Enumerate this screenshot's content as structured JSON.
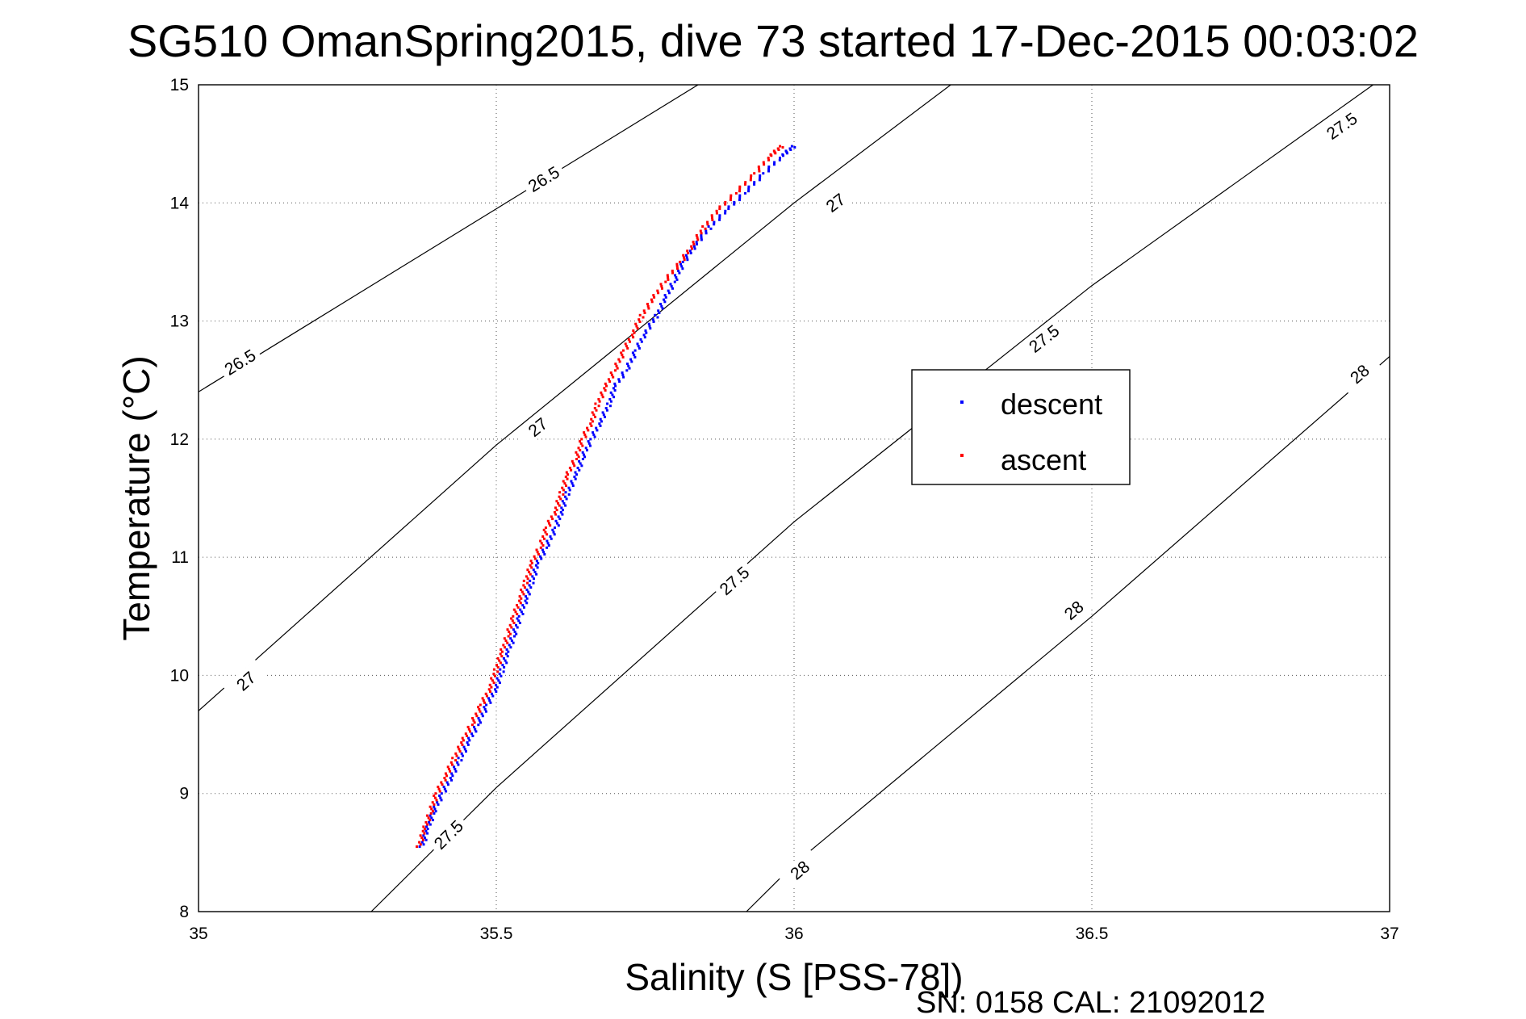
{
  "chart_data": {
    "type": "scatter",
    "title": "SG510 OmanSpring2015, dive 73 started 17-Dec-2015 00:03:02",
    "xlabel": "Salinity (S [PSS-78])",
    "ylabel": "Temperature (°C)",
    "xlim": [
      35,
      37
    ],
    "ylim": [
      8,
      15
    ],
    "xticks": [
      "35",
      "35.5",
      "36",
      "36.5",
      "37"
    ],
    "yticks": [
      "8",
      "9",
      "10",
      "11",
      "12",
      "13",
      "14",
      "15"
    ],
    "grid": true,
    "legend_position": "right",
    "series": [
      {
        "name": "descent",
        "color": "#0000ff",
        "marker": "point",
        "points": [
          [
            35.375,
            8.55
          ],
          [
            35.385,
            8.7
          ],
          [
            35.395,
            8.85
          ],
          [
            35.41,
            9.0
          ],
          [
            35.425,
            9.15
          ],
          [
            35.44,
            9.3
          ],
          [
            35.455,
            9.45
          ],
          [
            35.47,
            9.6
          ],
          [
            35.485,
            9.75
          ],
          [
            35.5,
            9.9
          ],
          [
            35.51,
            10.05
          ],
          [
            35.52,
            10.2
          ],
          [
            35.53,
            10.35
          ],
          [
            35.54,
            10.5
          ],
          [
            35.55,
            10.65
          ],
          [
            35.56,
            10.8
          ],
          [
            35.57,
            10.95
          ],
          [
            35.585,
            11.1
          ],
          [
            35.6,
            11.25
          ],
          [
            35.61,
            11.4
          ],
          [
            35.62,
            11.55
          ],
          [
            35.635,
            11.7
          ],
          [
            35.645,
            11.85
          ],
          [
            35.66,
            12.0
          ],
          [
            35.675,
            12.15
          ],
          [
            35.69,
            12.3
          ],
          [
            35.7,
            12.45
          ],
          [
            35.72,
            12.6
          ],
          [
            35.735,
            12.75
          ],
          [
            35.75,
            12.9
          ],
          [
            35.77,
            13.05
          ],
          [
            35.785,
            13.2
          ],
          [
            35.8,
            13.35
          ],
          [
            35.815,
            13.5
          ],
          [
            35.835,
            13.65
          ],
          [
            35.86,
            13.8
          ],
          [
            35.89,
            13.95
          ],
          [
            35.92,
            14.1
          ],
          [
            35.95,
            14.25
          ],
          [
            35.98,
            14.4
          ],
          [
            36.0,
            14.48
          ]
        ]
      },
      {
        "name": "ascent",
        "color": "#ff0000",
        "marker": "point",
        "points": [
          [
            35.37,
            8.55
          ],
          [
            35.38,
            8.7
          ],
          [
            35.39,
            8.85
          ],
          [
            35.4,
            9.0
          ],
          [
            35.415,
            9.15
          ],
          [
            35.43,
            9.3
          ],
          [
            35.445,
            9.45
          ],
          [
            35.46,
            9.6
          ],
          [
            35.475,
            9.75
          ],
          [
            35.49,
            9.9
          ],
          [
            35.5,
            10.05
          ],
          [
            35.51,
            10.2
          ],
          [
            35.52,
            10.35
          ],
          [
            35.53,
            10.5
          ],
          [
            35.54,
            10.65
          ],
          [
            35.55,
            10.8
          ],
          [
            35.56,
            10.95
          ],
          [
            35.575,
            11.1
          ],
          [
            35.585,
            11.25
          ],
          [
            35.6,
            11.4
          ],
          [
            35.61,
            11.55
          ],
          [
            35.62,
            11.7
          ],
          [
            35.635,
            11.85
          ],
          [
            35.645,
            12.0
          ],
          [
            35.66,
            12.15
          ],
          [
            35.67,
            12.3
          ],
          [
            35.685,
            12.45
          ],
          [
            35.7,
            12.6
          ],
          [
            35.715,
            12.75
          ],
          [
            35.73,
            12.9
          ],
          [
            35.745,
            13.05
          ],
          [
            35.765,
            13.2
          ],
          [
            35.785,
            13.35
          ],
          [
            35.81,
            13.5
          ],
          [
            35.83,
            13.65
          ],
          [
            35.85,
            13.8
          ],
          [
            35.875,
            13.95
          ],
          [
            35.905,
            14.1
          ],
          [
            35.935,
            14.25
          ],
          [
            35.96,
            14.4
          ],
          [
            35.98,
            14.48
          ]
        ]
      }
    ],
    "contours": [
      {
        "label": "26.5",
        "points": [
          [
            35.0,
            12.4
          ],
          [
            35.5,
            13.95
          ],
          [
            36.0,
            15.5
          ]
        ],
        "labels_at": [
          [
            35.07,
            12.65
          ],
          [
            35.58,
            14.2
          ]
        ]
      },
      {
        "label": "27",
        "points": [
          [
            35.0,
            9.7
          ],
          [
            35.5,
            11.95
          ],
          [
            36.0,
            14.0
          ],
          [
            36.5,
            15.9
          ]
        ],
        "labels_at": [
          [
            35.08,
            9.95
          ],
          [
            35.57,
            12.1
          ],
          [
            36.07,
            14.0
          ]
        ]
      },
      {
        "label": "27.5",
        "points": [
          [
            35.29,
            8.0
          ],
          [
            35.5,
            9.05
          ],
          [
            36.0,
            11.3
          ],
          [
            36.5,
            13.3
          ],
          [
            37.0,
            15.1
          ]
        ],
        "labels_at": [
          [
            35.42,
            8.65
          ],
          [
            35.9,
            10.8
          ],
          [
            36.42,
            12.85
          ],
          [
            36.92,
            14.65
          ]
        ]
      },
      {
        "label": "28",
        "points": [
          [
            35.92,
            8.0
          ],
          [
            36.0,
            8.4
          ],
          [
            36.5,
            10.5
          ],
          [
            37.0,
            12.7
          ]
        ],
        "labels_at": [
          [
            36.01,
            8.35
          ],
          [
            36.47,
            10.55
          ],
          [
            36.95,
            12.55
          ]
        ]
      }
    ],
    "footer": "SN: 0158  CAL: 21092012"
  }
}
